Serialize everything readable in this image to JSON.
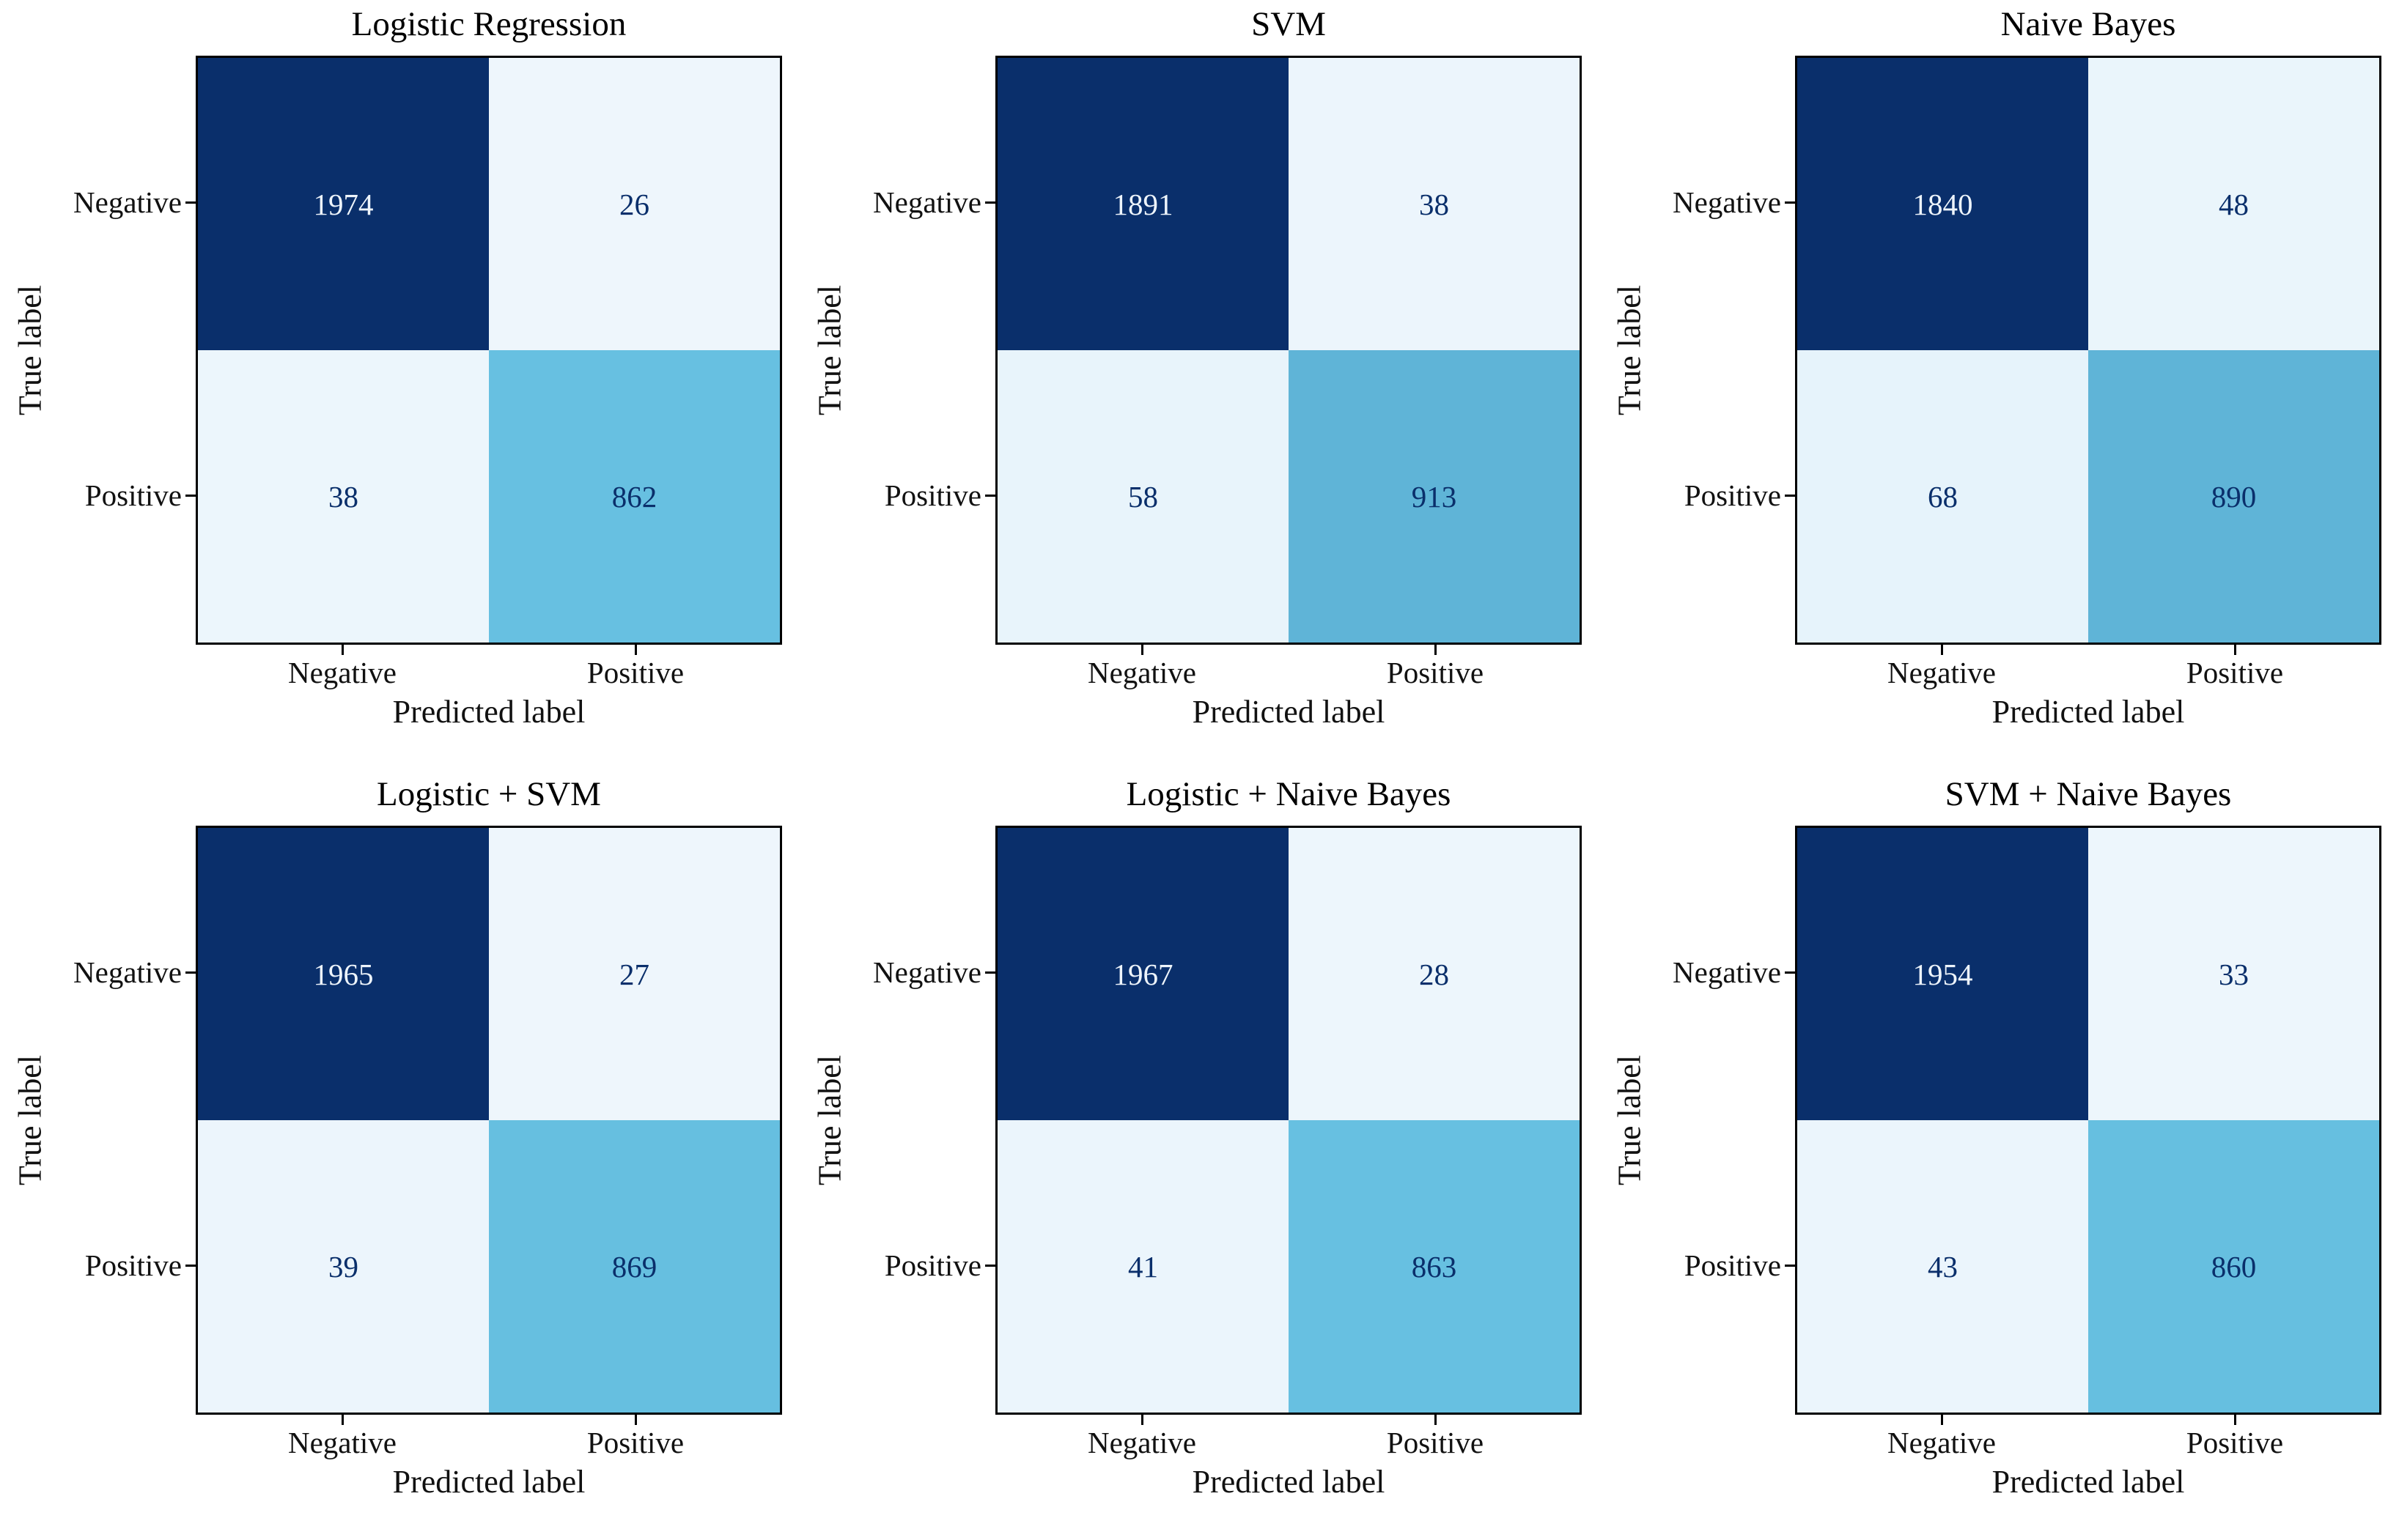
{
  "colors": {
    "background": "#ffffff",
    "spine": "#000000",
    "label_text": "#111111",
    "cell_dark": "#0a2f6b",
    "cell_mid": "#67c0e1",
    "cell_light": "#f2f8fd",
    "text_on_dark": "#edf4fb",
    "text_on_light": "#0a2f6b",
    "cmap_stops": [
      [
        0,
        "#f2f8fd"
      ],
      [
        0.437,
        "#67c0e1"
      ],
      [
        1,
        "#0a2f6b"
      ]
    ]
  },
  "chart_data": [
    {
      "type": "heatmap",
      "title": "Logistic Regression",
      "xlabel": "Predicted label",
      "ylabel": "True label",
      "x_ticks": [
        "Negative",
        "Positive"
      ],
      "y_ticks": [
        "Negative",
        "Positive"
      ],
      "matrix": [
        [
          1974,
          26
        ],
        [
          38,
          862
        ]
      ],
      "colormap": "Blues"
    },
    {
      "type": "heatmap",
      "title": "SVM",
      "xlabel": "Predicted label",
      "ylabel": "True label",
      "x_ticks": [
        "Negative",
        "Positive"
      ],
      "y_ticks": [
        "Negative",
        "Positive"
      ],
      "matrix": [
        [
          1891,
          38
        ],
        [
          58,
          913
        ]
      ],
      "colormap": "Blues"
    },
    {
      "type": "heatmap",
      "title": "Naive Bayes",
      "xlabel": "Predicted label",
      "ylabel": "True label",
      "x_ticks": [
        "Negative",
        "Positive"
      ],
      "y_ticks": [
        "Negative",
        "Positive"
      ],
      "matrix": [
        [
          1840,
          48
        ],
        [
          68,
          890
        ]
      ],
      "colormap": "Blues"
    },
    {
      "type": "heatmap",
      "title": "Logistic + SVM",
      "xlabel": "Predicted label",
      "ylabel": "True label",
      "x_ticks": [
        "Negative",
        "Positive"
      ],
      "y_ticks": [
        "Negative",
        "Positive"
      ],
      "matrix": [
        [
          1965,
          27
        ],
        [
          39,
          869
        ]
      ],
      "colormap": "Blues"
    },
    {
      "type": "heatmap",
      "title": "Logistic + Naive Bayes",
      "xlabel": "Predicted label",
      "ylabel": "True label",
      "x_ticks": [
        "Negative",
        "Positive"
      ],
      "y_ticks": [
        "Negative",
        "Positive"
      ],
      "matrix": [
        [
          1967,
          28
        ],
        [
          41,
          863
        ]
      ],
      "colormap": "Blues"
    },
    {
      "type": "heatmap",
      "title": "SVM + Naive Bayes",
      "xlabel": "Predicted label",
      "ylabel": "True label",
      "x_ticks": [
        "Negative",
        "Positive"
      ],
      "y_ticks": [
        "Negative",
        "Positive"
      ],
      "matrix": [
        [
          1954,
          33
        ],
        [
          43,
          860
        ]
      ],
      "colormap": "Blues"
    }
  ]
}
